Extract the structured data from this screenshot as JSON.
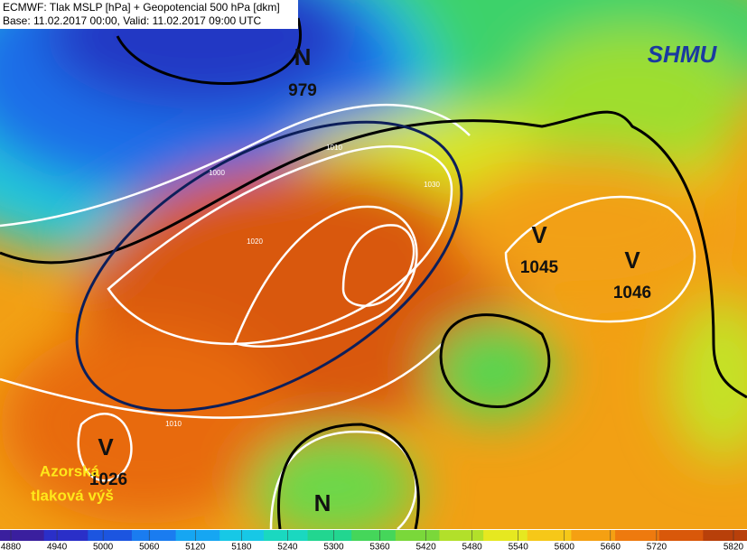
{
  "header": {
    "line1": "ECMWF: Tlak MSLP [hPa] + Geopotencial 500 hPa [dkm]",
    "line2": "Base: 11.02.2017 00:00, Valid: 11.02.2017 09:00 UTC"
  },
  "logo": "SHMU",
  "pressure_centers": [
    {
      "symbol": "N",
      "value": "979"
    },
    {
      "symbol": "V",
      "value": "1045"
    },
    {
      "symbol": "V",
      "value": "1046"
    },
    {
      "symbol": "V",
      "value": "1026"
    },
    {
      "symbol": "N"
    }
  ],
  "annotation": [
    "Azorská",
    "tlaková výš"
  ],
  "contour_labels": [
    "1000",
    "1010",
    "1020",
    "1030",
    "1010"
  ],
  "colorbar": {
    "ticks": [
      4880,
      4940,
      5000,
      5060,
      5120,
      5180,
      5240,
      5300,
      5360,
      5420,
      5480,
      5540,
      5600,
      5660,
      5720,
      5820
    ],
    "colors": [
      "#3a1f9e",
      "#2a2fc8",
      "#1c55e0",
      "#1a7cf0",
      "#16a6f2",
      "#17c8e6",
      "#1ad8c0",
      "#22d690",
      "#45d65a",
      "#7ad83a",
      "#b2e02a",
      "#e6e820",
      "#f6c818",
      "#f5a012",
      "#ee7a0e",
      "#d9580a",
      "#b8400a"
    ]
  }
}
